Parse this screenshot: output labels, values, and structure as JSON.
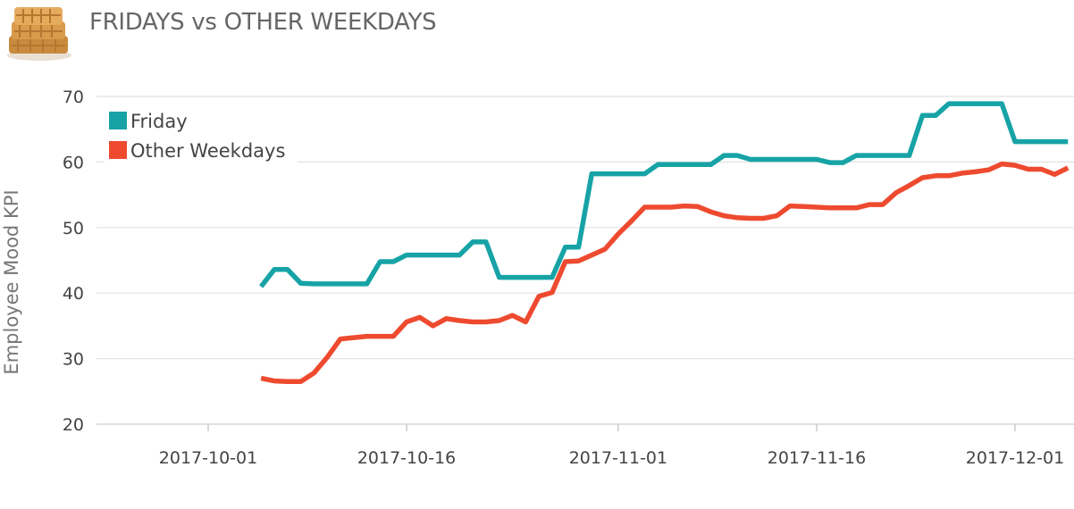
{
  "header": {
    "title": "FRIDAYS vs OTHER WEEKDAYS"
  },
  "chart_data": {
    "type": "line",
    "title": "FRIDAYS vs OTHER WEEKDAYS",
    "xlabel": "",
    "ylabel": "Employee Mood KPI",
    "ylim": [
      20,
      70
    ],
    "yticks": [
      20,
      30,
      40,
      50,
      60,
      70
    ],
    "xlim": [
      "2017-09-23",
      "2017-12-05"
    ],
    "xticks": [
      "2017-10-01",
      "2017-10-16",
      "2017-11-01",
      "2017-11-16",
      "2017-12-01"
    ],
    "grid": "horizontal",
    "legend_position": "top-left",
    "series": [
      {
        "name": "Friday",
        "color": "#17a3a6",
        "points": [
          [
            "2017-10-05",
            41.0
          ],
          [
            "2017-10-06",
            43.6
          ],
          [
            "2017-10-07",
            43.6
          ],
          [
            "2017-10-08",
            41.5
          ],
          [
            "2017-10-09",
            41.4
          ],
          [
            "2017-10-10",
            41.4
          ],
          [
            "2017-10-11",
            41.4
          ],
          [
            "2017-10-12",
            41.4
          ],
          [
            "2017-10-13",
            41.4
          ],
          [
            "2017-10-14",
            44.8
          ],
          [
            "2017-10-15",
            44.8
          ],
          [
            "2017-10-16",
            45.8
          ],
          [
            "2017-10-17",
            45.8
          ],
          [
            "2017-10-18",
            45.8
          ],
          [
            "2017-10-19",
            45.8
          ],
          [
            "2017-10-20",
            45.8
          ],
          [
            "2017-10-21",
            47.8
          ],
          [
            "2017-10-22",
            47.8
          ],
          [
            "2017-10-23",
            42.4
          ],
          [
            "2017-10-24",
            42.4
          ],
          [
            "2017-10-25",
            42.4
          ],
          [
            "2017-10-26",
            42.4
          ],
          [
            "2017-10-27",
            42.4
          ],
          [
            "2017-10-28",
            47.0
          ],
          [
            "2017-10-29",
            47.0
          ],
          [
            "2017-10-30",
            58.2
          ],
          [
            "2017-10-31",
            58.2
          ],
          [
            "2017-11-01",
            58.2
          ],
          [
            "2017-11-02",
            58.2
          ],
          [
            "2017-11-03",
            58.2
          ],
          [
            "2017-11-04",
            59.6
          ],
          [
            "2017-11-05",
            59.6
          ],
          [
            "2017-11-06",
            59.6
          ],
          [
            "2017-11-07",
            59.6
          ],
          [
            "2017-11-08",
            59.6
          ],
          [
            "2017-11-09",
            61.0
          ],
          [
            "2017-11-10",
            61.0
          ],
          [
            "2017-11-11",
            60.4
          ],
          [
            "2017-11-12",
            60.4
          ],
          [
            "2017-11-13",
            60.4
          ],
          [
            "2017-11-14",
            60.4
          ],
          [
            "2017-11-15",
            60.4
          ],
          [
            "2017-11-16",
            60.4
          ],
          [
            "2017-11-17",
            59.9
          ],
          [
            "2017-11-18",
            59.9
          ],
          [
            "2017-11-19",
            61.0
          ],
          [
            "2017-11-20",
            61.0
          ],
          [
            "2017-11-21",
            61.0
          ],
          [
            "2017-11-22",
            61.0
          ],
          [
            "2017-11-23",
            61.0
          ],
          [
            "2017-11-24",
            67.1
          ],
          [
            "2017-11-25",
            67.1
          ],
          [
            "2017-11-26",
            68.9
          ],
          [
            "2017-11-27",
            68.9
          ],
          [
            "2017-11-28",
            68.9
          ],
          [
            "2017-11-29",
            68.9
          ],
          [
            "2017-11-30",
            68.9
          ],
          [
            "2017-12-01",
            63.1
          ],
          [
            "2017-12-02",
            63.1
          ],
          [
            "2017-12-03",
            63.1
          ],
          [
            "2017-12-04",
            63.1
          ],
          [
            "2017-12-05",
            63.1
          ]
        ]
      },
      {
        "name": "Other Weekdays",
        "color": "#ee4a2f",
        "points": [
          [
            "2017-10-05",
            27.0
          ],
          [
            "2017-10-06",
            26.6
          ],
          [
            "2017-10-07",
            26.5
          ],
          [
            "2017-10-08",
            26.5
          ],
          [
            "2017-10-09",
            27.8
          ],
          [
            "2017-10-10",
            30.2
          ],
          [
            "2017-10-11",
            33.0
          ],
          [
            "2017-10-12",
            33.2
          ],
          [
            "2017-10-13",
            33.4
          ],
          [
            "2017-10-14",
            33.4
          ],
          [
            "2017-10-15",
            33.4
          ],
          [
            "2017-10-16",
            35.6
          ],
          [
            "2017-10-17",
            36.3
          ],
          [
            "2017-10-18",
            35.0
          ],
          [
            "2017-10-19",
            36.1
          ],
          [
            "2017-10-20",
            35.8
          ],
          [
            "2017-10-21",
            35.6
          ],
          [
            "2017-10-22",
            35.6
          ],
          [
            "2017-10-23",
            35.8
          ],
          [
            "2017-10-24",
            36.6
          ],
          [
            "2017-10-25",
            35.6
          ],
          [
            "2017-10-26",
            39.5
          ],
          [
            "2017-10-27",
            40.1
          ],
          [
            "2017-10-28",
            44.8
          ],
          [
            "2017-10-29",
            44.9
          ],
          [
            "2017-10-30",
            45.8
          ],
          [
            "2017-10-31",
            46.7
          ],
          [
            "2017-11-01",
            49.0
          ],
          [
            "2017-11-02",
            51.0
          ],
          [
            "2017-11-03",
            53.1
          ],
          [
            "2017-11-04",
            53.1
          ],
          [
            "2017-11-05",
            53.1
          ],
          [
            "2017-11-06",
            53.3
          ],
          [
            "2017-11-07",
            53.2
          ],
          [
            "2017-11-08",
            52.4
          ],
          [
            "2017-11-09",
            51.8
          ],
          [
            "2017-11-10",
            51.5
          ],
          [
            "2017-11-11",
            51.4
          ],
          [
            "2017-11-12",
            51.4
          ],
          [
            "2017-11-13",
            51.8
          ],
          [
            "2017-11-14",
            53.3
          ],
          [
            "2017-11-15",
            53.2
          ],
          [
            "2017-11-16",
            53.1
          ],
          [
            "2017-11-17",
            53.0
          ],
          [
            "2017-11-18",
            53.0
          ],
          [
            "2017-11-19",
            53.0
          ],
          [
            "2017-11-20",
            53.5
          ],
          [
            "2017-11-21",
            53.5
          ],
          [
            "2017-11-22",
            55.3
          ],
          [
            "2017-11-23",
            56.4
          ],
          [
            "2017-11-24",
            57.6
          ],
          [
            "2017-11-25",
            57.9
          ],
          [
            "2017-11-26",
            57.9
          ],
          [
            "2017-11-27",
            58.3
          ],
          [
            "2017-11-28",
            58.5
          ],
          [
            "2017-11-29",
            58.8
          ],
          [
            "2017-11-30",
            59.7
          ],
          [
            "2017-12-01",
            59.5
          ],
          [
            "2017-12-02",
            58.9
          ],
          [
            "2017-12-03",
            58.9
          ],
          [
            "2017-12-04",
            58.1
          ],
          [
            "2017-12-05",
            59.1
          ]
        ]
      }
    ]
  }
}
